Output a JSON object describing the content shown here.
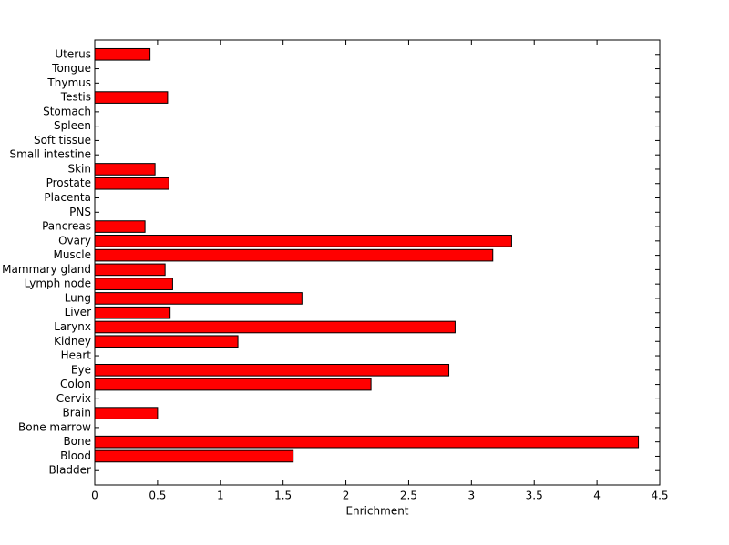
{
  "chart_data": {
    "type": "barh",
    "xlabel": "Enrichment",
    "categories": [
      "Bladder",
      "Blood",
      "Bone",
      "Bone marrow",
      "Brain",
      "Cervix",
      "Colon",
      "Eye",
      "Heart",
      "Kidney",
      "Larynx",
      "Liver",
      "Lung",
      "Lymph node",
      "Mammary gland",
      "Muscle",
      "Ovary",
      "Pancreas",
      "PNS",
      "Placenta",
      "Prostate",
      "Skin",
      "Small intestine",
      "Soft tissue",
      "Spleen",
      "Stomach",
      "Testis",
      "Thymus",
      "Tongue",
      "Uterus"
    ],
    "values": [
      0,
      1.58,
      4.33,
      0,
      0.5,
      0,
      2.2,
      2.82,
      0,
      1.14,
      2.87,
      0.6,
      1.65,
      0.62,
      0.56,
      3.17,
      3.32,
      0.4,
      0,
      0,
      0.59,
      0.48,
      0,
      0,
      0,
      0,
      0.58,
      0,
      0,
      0.44
    ],
    "color": "#ff0000",
    "xlim": [
      0,
      4.5
    ],
    "xticks": [
      0,
      0.5,
      1,
      1.5,
      2,
      2.5,
      3,
      3.5,
      4,
      4.5
    ]
  }
}
